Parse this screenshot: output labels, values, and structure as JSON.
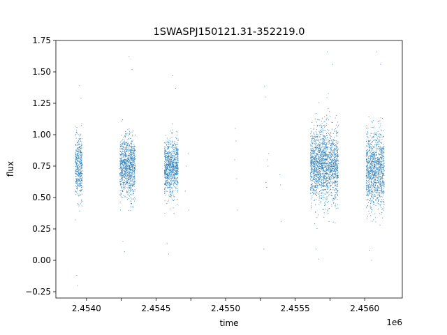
{
  "chart_data": {
    "type": "scatter",
    "title": "1SWASPJ150121.31-352219.0",
    "xlabel": "time",
    "ylabel": "flux",
    "x_offset_label": "1e6",
    "xlim": [
      2453730,
      2456220
    ],
    "ylim": [
      -0.3,
      1.75
    ],
    "x_ticks": [
      2453950,
      2454200,
      2454450,
      2454700,
      2454950,
      2455200,
      2455450,
      2455700,
      2455950
    ],
    "x_tick_labels": [
      "2.4540",
      "",
      "2.4545",
      "",
      "2.4550",
      "",
      "2.4555",
      "",
      "2.4560"
    ],
    "y_ticks": [
      -0.25,
      0.0,
      0.25,
      0.5,
      0.75,
      1.0,
      1.25,
      1.5,
      1.75
    ],
    "y_tick_labels": [
      "−0.25",
      "0.00",
      "0.25",
      "0.50",
      "0.75",
      "1.00",
      "1.25",
      "1.50",
      "1.75"
    ],
    "grid": false,
    "legend": "none",
    "series": [
      {
        "marker_color": "#1f77b4",
        "seasons": [
          {
            "t_start": 2453870,
            "t_end": 2453920,
            "flux_center": 0.74,
            "flux_spread": 0.12,
            "flux_min": -0.2,
            "flux_max": 1.39
          },
          {
            "t_start": 2454190,
            "t_end": 2454300,
            "flux_center": 0.74,
            "flux_spread": 0.12,
            "flux_min": 0.07,
            "flux_max": 1.62
          },
          {
            "t_start": 2454510,
            "t_end": 2454610,
            "flux_center": 0.74,
            "flux_spread": 0.11,
            "flux_min": 0.05,
            "flux_max": 1.47
          },
          {
            "t_start": 2455560,
            "t_end": 2455760,
            "flux_center": 0.76,
            "flux_spread": 0.15,
            "flux_min": 0.01,
            "flux_max": 1.66
          },
          {
            "t_start": 2455960,
            "t_end": 2456090,
            "flux_center": 0.72,
            "flux_spread": 0.15,
            "flux_min": 0.0,
            "flux_max": 1.66
          }
        ],
        "sparse_points": [
          [
            2454680,
            0.85
          ],
          [
            2454685,
            0.4
          ],
          [
            2454670,
            0.75
          ],
          [
            2454660,
            0.55
          ],
          [
            2455020,
            1.05
          ],
          [
            2455025,
            0.95
          ],
          [
            2455030,
            0.65
          ],
          [
            2455035,
            0.4
          ],
          [
            2455015,
            0.8
          ],
          [
            2455230,
            1.38
          ],
          [
            2455235,
            1.3
          ],
          [
            2455240,
            0.62
          ],
          [
            2455245,
            0.58
          ],
          [
            2455225,
            0.09
          ],
          [
            2455250,
            0.8
          ],
          [
            2455255,
            0.75
          ],
          [
            2455260,
            0.85
          ],
          [
            2455340,
            0.68
          ],
          [
            2455345,
            0.6
          ],
          [
            2455350,
            0.31
          ]
        ]
      }
    ]
  }
}
